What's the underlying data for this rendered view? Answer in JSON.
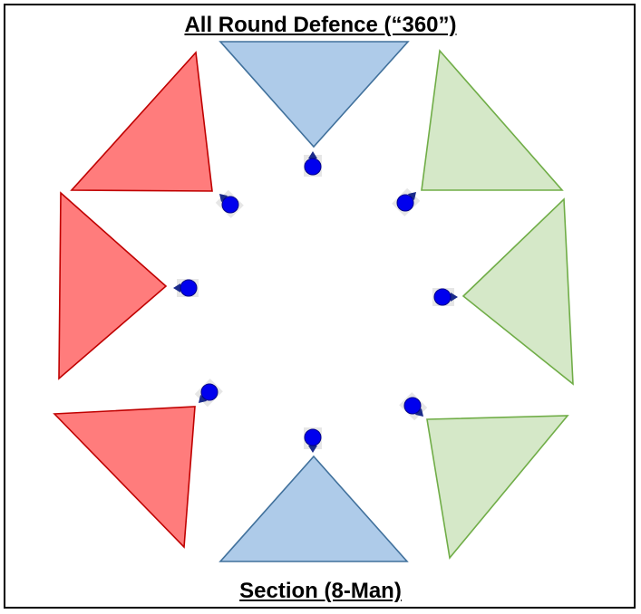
{
  "title": "All Round Defence (“360”)",
  "caption": "Section (8-Man)",
  "colors": {
    "blue_sector_fill": "#aecbe9",
    "blue_sector_stroke": "#41719c",
    "red_sector_fill": "#ff7c7c",
    "red_sector_stroke": "#c00000",
    "green_sector_fill": "#d5e8c8",
    "green_sector_stroke": "#70ad47",
    "soldier": "#0000ee",
    "soldier_arrow": "#1a2a8a",
    "frame": "#000000"
  },
  "sectors": [
    {
      "id": "north",
      "color": "blue"
    },
    {
      "id": "north-east",
      "color": "green"
    },
    {
      "id": "east",
      "color": "green"
    },
    {
      "id": "south-east",
      "color": "green"
    },
    {
      "id": "south",
      "color": "blue"
    },
    {
      "id": "south-west",
      "color": "red"
    },
    {
      "id": "west",
      "color": "red"
    },
    {
      "id": "north-west",
      "color": "red"
    }
  ],
  "soldiers": [
    {
      "id": "north",
      "facing": "north"
    },
    {
      "id": "north-east",
      "facing": "north-east"
    },
    {
      "id": "east",
      "facing": "east"
    },
    {
      "id": "south-east",
      "facing": "south-east"
    },
    {
      "id": "south",
      "facing": "south"
    },
    {
      "id": "south-west",
      "facing": "south-west"
    },
    {
      "id": "west",
      "facing": "west"
    },
    {
      "id": "north-west",
      "facing": "north-west"
    }
  ]
}
